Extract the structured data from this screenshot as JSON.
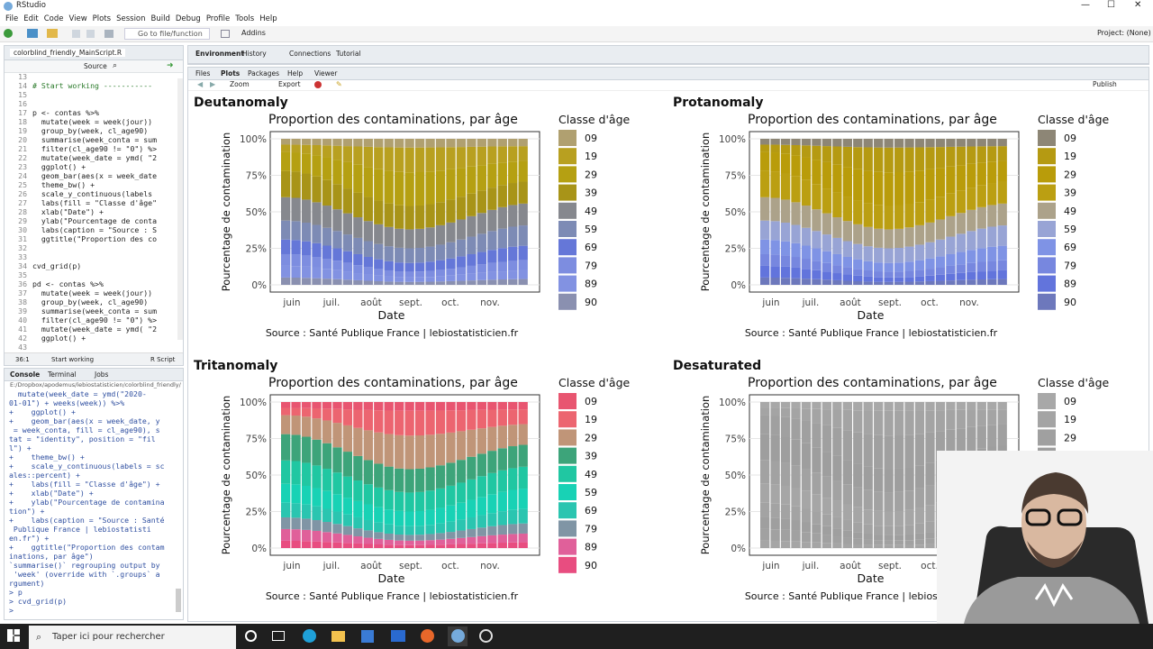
{
  "window": {
    "title": "RStudio"
  },
  "menu": [
    "File",
    "Edit",
    "Code",
    "View",
    "Plots",
    "Session",
    "Build",
    "Debug",
    "Profile",
    "Tools",
    "Help"
  ],
  "toolbar": {
    "goto": "Go to file/function",
    "addins": "Addins",
    "project": "Project: (None)"
  },
  "editor": {
    "tab": "colorblind_friendly_MainScript.R",
    "source_label": "Source",
    "lines": [
      {
        "n": "13",
        "t": ""
      },
      {
        "n": "14",
        "t": "# Start working -----------"
      },
      {
        "n": "15",
        "t": ""
      },
      {
        "n": "16",
        "t": ""
      },
      {
        "n": "17",
        "t": "p <- contas %>%"
      },
      {
        "n": "18",
        "t": "  mutate(week = week(jour)) "
      },
      {
        "n": "19",
        "t": "  group_by(week, cl_age90) "
      },
      {
        "n": "20",
        "t": "  summarise(week_conta = sum"
      },
      {
        "n": "21",
        "t": "  filter(cl_age90 != \"0\") %>"
      },
      {
        "n": "22",
        "t": "  mutate(week_date = ymd( \"2"
      },
      {
        "n": "23",
        "t": "  ggplot() +"
      },
      {
        "n": "24",
        "t": "  geom_bar(aes(x = week_date"
      },
      {
        "n": "25",
        "t": "  theme_bw() +"
      },
      {
        "n": "26",
        "t": "  scale_y_continuous(labels"
      },
      {
        "n": "27",
        "t": "  labs(fill = \"Classe d'âge\""
      },
      {
        "n": "28",
        "t": "  xlab(\"Date\") +"
      },
      {
        "n": "29",
        "t": "  ylab(\"Pourcentage de conta"
      },
      {
        "n": "30",
        "t": "  labs(caption = \"Source : S"
      },
      {
        "n": "31",
        "t": "  ggtitle(\"Proportion des co"
      },
      {
        "n": "32",
        "t": ""
      },
      {
        "n": "33",
        "t": ""
      },
      {
        "n": "34",
        "t": "cvd_grid(p)"
      },
      {
        "n": "35",
        "t": ""
      },
      {
        "n": "36",
        "t": "pd <- contas %>%"
      },
      {
        "n": "37",
        "t": "  mutate(week = week(jour)) "
      },
      {
        "n": "38",
        "t": "  group_by(week, cl_age90) "
      },
      {
        "n": "39",
        "t": "  summarise(week_conta = sum"
      },
      {
        "n": "40",
        "t": "  filter(cl_age90 != \"0\") %>"
      },
      {
        "n": "41",
        "t": "  mutate(week_date = ymd( \"2"
      },
      {
        "n": "42",
        "t": "  ggplot() +"
      },
      {
        "n": "43",
        "t": ""
      }
    ],
    "status_pos": "36:1",
    "status_section": "Start working",
    "status_type": "R Script"
  },
  "console": {
    "tabs": [
      "Console",
      "Terminal",
      "Jobs"
    ],
    "path": "E:/Dropbox/apodemus/lebiostatisticien/colorblind_friendly/",
    "text": "  mutate(week_date = ymd(\"2020-\n01-01\") + weeks(week)) %>%\n+    ggplot() +\n+    geom_bar(aes(x = week_date, y\n = week_conta, fill = cl_age90), s\ntat = \"identity\", position = \"fil\nl\") +\n+    theme_bw() +\n+    scale_y_continuous(labels = sc\nales::percent) +\n+    labs(fill = \"Classe d'âge\") +\n+    xlab(\"Date\") +\n+    ylab(\"Pourcentage de contamina\ntion\") +\n+    labs(caption = \"Source : Santé\n Publique France | lebiostatisti\nen.fr\") +\n+    ggtitle(\"Proportion des contam\ninations, par âge\")\n`summarise()` regrouping output by\n 'week' (override with `.groups` a\nrgument)\n> p\n> cvd_grid(p)\n> "
  },
  "env_tabs": [
    "Environment",
    "History",
    "Connections",
    "Tutorial"
  ],
  "files_tabs": [
    "Files",
    "Plots",
    "Packages",
    "Help",
    "Viewer"
  ],
  "plot_toolbar": {
    "zoom": "Zoom",
    "export": "Export",
    "publish": "Publish"
  },
  "taskbar": {
    "search": "Taper ici pour rechercher"
  },
  "chart_data": {
    "type": "bar",
    "stacked": "fill",
    "chart_title": "Proportion des contaminations, par âge",
    "xlabel": "Date",
    "ylabel": "Pourcentage de contamination",
    "legend_title": "Classe d'âge",
    "caption": "Source : Santé Publique France | lebiostatisticien.fr",
    "xticks": [
      "juin",
      "juil.",
      "août",
      "sept.",
      "oct.",
      "nov."
    ],
    "yticks": [
      "0%",
      "25%",
      "50%",
      "75%",
      "100%"
    ],
    "categories": [
      "09",
      "19",
      "29",
      "39",
      "49",
      "59",
      "69",
      "79",
      "89",
      "90"
    ],
    "weeks": 24,
    "shares": {
      "start": [
        0.04,
        0.05,
        0.13,
        0.18,
        0.16,
        0.13,
        0.1,
        0.08,
        0.08,
        0.05
      ],
      "mid": [
        0.06,
        0.17,
        0.23,
        0.16,
        0.13,
        0.1,
        0.06,
        0.04,
        0.03,
        0.02
      ],
      "end": [
        0.05,
        0.1,
        0.14,
        0.15,
        0.15,
        0.14,
        0.1,
        0.07,
        0.06,
        0.04
      ]
    },
    "panels": [
      {
        "name": "Deutanomaly",
        "colors": [
          "#b0a070",
          "#b8a020",
          "#b5a012",
          "#a89418",
          "#86888e",
          "#7d8bb5",
          "#6577d8",
          "#7d8de0",
          "#8292e2",
          "#8a90b0"
        ]
      },
      {
        "name": "Protanomaly",
        "colors": [
          "#8d8676",
          "#b59a12",
          "#b99c0a",
          "#bb9f12",
          "#aca28a",
          "#98a4d5",
          "#7f93e5",
          "#7787df",
          "#6274dc",
          "#6d78bc"
        ]
      },
      {
        "name": "Tritanomaly",
        "colors": [
          "#e85570",
          "#ec6570",
          "#c09578",
          "#3da47a",
          "#20c7a2",
          "#18d2b5",
          "#2ac5b0",
          "#8095a5",
          "#e0609a",
          "#e84d80"
        ]
      },
      {
        "name": "Desaturated",
        "colors": [
          "#a8a8a8",
          "#a4a4a4",
          "#a0a0a0",
          "#9e9e9e",
          "#a2a2a2",
          "#a6a6a6",
          "#a3a3a3",
          "#9f9f9f",
          "#a1a1a1",
          "#a5a5a5"
        ]
      }
    ]
  }
}
